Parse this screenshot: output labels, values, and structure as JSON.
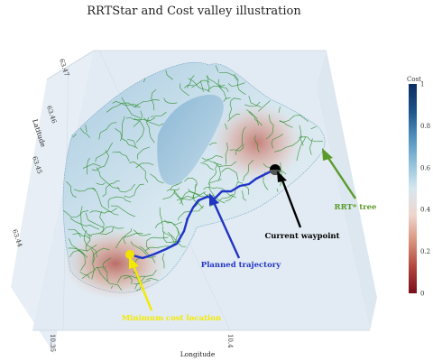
{
  "chart_data": {
    "type": "surface",
    "title": "RRTStar and Cost valley illustration",
    "xlabel": "Longitude",
    "ylabel": "Latitude",
    "x_ticks": [
      "10.35",
      "10.4"
    ],
    "y_ticks": [
      "63.44",
      "63.45",
      "63.46",
      "63.47"
    ],
    "colorbar": {
      "title": "Cost",
      "range": [
        0,
        1
      ],
      "ticks": [
        "0",
        "0.2",
        "0.4",
        "0.6",
        "0.8",
        "1"
      ],
      "colorscale": [
        "#7a0d1c",
        "#b2453d",
        "#d9937d",
        "#efd6cf",
        "#d7e7f0",
        "#8fbfd8",
        "#4d8fbd",
        "#1c5189",
        "#0b2d63"
      ]
    },
    "series": [
      {
        "name": "Planned trajectory",
        "color": "#1f35c9"
      },
      {
        "name": "RRT* tree",
        "color": "#2f8f2f"
      }
    ],
    "annotations": [
      {
        "text": "Current waypoint",
        "color": "#000000"
      },
      {
        "text": "Planned trajectory",
        "color": "#2234c4"
      },
      {
        "text": "RRT* tree",
        "color": "#5a9a2a"
      },
      {
        "text": "Minimum cost location",
        "color": "#f2ea00"
      }
    ]
  }
}
